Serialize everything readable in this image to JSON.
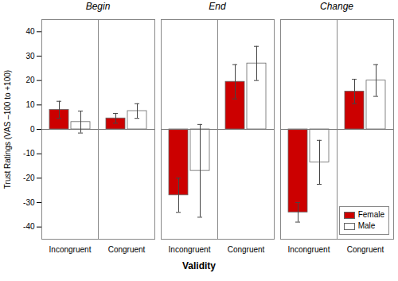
{
  "chart_data": [
    {
      "type": "bar",
      "title": "Begin",
      "categories": [
        "Incongruent",
        "Congruent"
      ],
      "series": [
        {
          "name": "Female",
          "color": "#CC0000",
          "values": [
            8.0,
            4.5
          ],
          "errors": [
            3.5,
            2.0
          ]
        },
        {
          "name": "Male",
          "color": "#FFFFFF",
          "values": [
            3.0,
            7.5
          ],
          "errors": [
            4.5,
            3.0
          ]
        }
      ],
      "ylabel": "Trust Ratings (VAS –100 to +100)",
      "ylim": [
        -45,
        45
      ],
      "yticks": [
        -40,
        -30,
        -20,
        -10,
        0,
        10,
        20,
        30,
        40
      ],
      "grid": false
    },
    {
      "type": "bar",
      "title": "End",
      "categories": [
        "Incongruent",
        "Congruent"
      ],
      "series": [
        {
          "name": "Female",
          "color": "#CC0000",
          "values": [
            -27.0,
            19.5
          ],
          "errors": [
            7.0,
            7.0
          ]
        },
        {
          "name": "Male",
          "color": "#FFFFFF",
          "values": [
            -17.0,
            27.0
          ],
          "errors": [
            19.0,
            7.0
          ]
        }
      ],
      "xlabel": "Validity",
      "ylim": [
        -45,
        45
      ],
      "yticks": [
        -40,
        -30,
        -20,
        -10,
        0,
        10,
        20,
        30,
        40
      ],
      "grid": false,
      "tick_labels": "x"
    },
    {
      "type": "bar",
      "title": "Change",
      "categories": [
        "Incongruent",
        "Congruent"
      ],
      "series": [
        {
          "name": "Female",
          "color": "#CC0000",
          "values": [
            -34.0,
            15.5
          ],
          "errors": [
            4.0,
            5.0
          ]
        },
        {
          "name": "Male",
          "color": "#FFFFFF",
          "values": [
            -13.5,
            20.0
          ],
          "errors": [
            9.0,
            6.5
          ]
        }
      ],
      "ylim": [
        -45,
        45
      ],
      "yticks": [
        -40,
        -30,
        -20,
        -10,
        0,
        10,
        20,
        30,
        40
      ],
      "grid": false,
      "tick_labels": "x",
      "legend": "lower right"
    }
  ]
}
